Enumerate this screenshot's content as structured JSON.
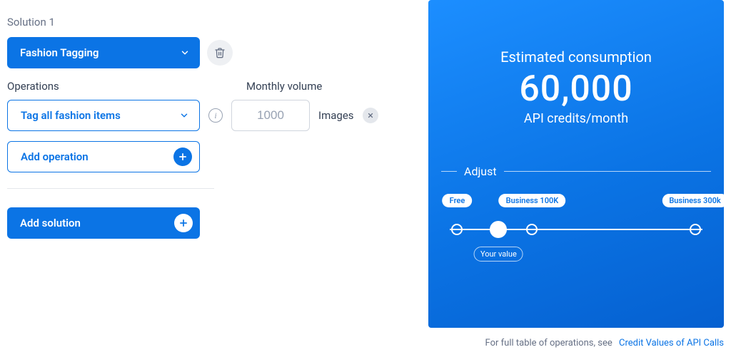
{
  "colors": {
    "primary": "#0b74e5",
    "primary_gradient_start": "#1c8eff",
    "primary_gradient_end": "#0560d0",
    "text_muted": "#667085",
    "text_body": "#344054",
    "border_light": "#d0d5dd",
    "bg_pill_gray": "#e4e7ec",
    "bg_icon_gray": "#eef0f3",
    "white": "#ffffff",
    "placeholder": "#98a2b3"
  },
  "left": {
    "solution_header": "Solution 1",
    "solution_dropdown": {
      "label": "Fashion Tagging"
    },
    "operations_label": "Operations",
    "monthly_volume_label": "Monthly volume",
    "operation_dropdown": {
      "label": "Tag all fashion items"
    },
    "volume_input": {
      "value": "1000"
    },
    "volume_unit": "Images",
    "add_operation_label": "Add operation",
    "add_solution_label": "Add solution"
  },
  "right": {
    "est_label": "Estimated consumption",
    "est_value": "60,000",
    "est_unit": "API credits/month",
    "adjust_label": "Adjust",
    "slider": {
      "tiers": [
        {
          "label": "Free",
          "position_pct": 4
        },
        {
          "label": "Business 100K",
          "position_pct": 33
        },
        {
          "label": "Business 300k",
          "position_pct": 96
        }
      ],
      "nodes_pct": [
        4,
        33,
        96
      ],
      "your_value_label": "Your value",
      "your_value_pct": 20
    },
    "footer_text": "For full table of operations, see",
    "footer_link": "Credit Values of API Calls"
  }
}
